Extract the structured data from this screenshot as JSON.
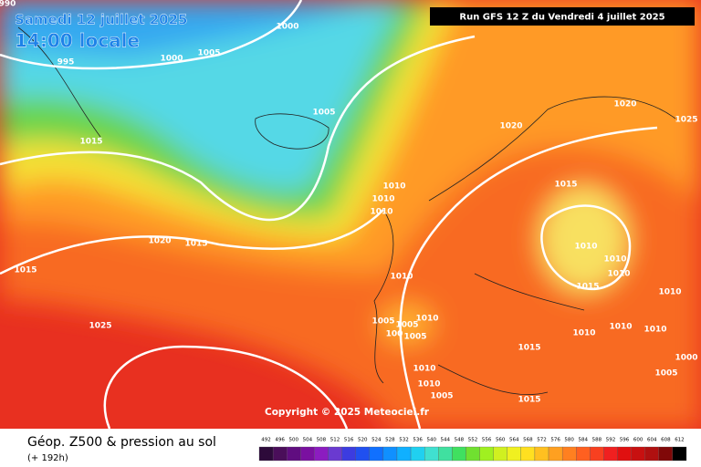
{
  "header": {
    "date": "Samedi 12 juillet 2025",
    "time": "14:00 locale",
    "run": "Run GFS 12 Z du Vendredi 4 juillet 2025"
  },
  "isobar_labels": [
    "990",
    "1000",
    "995",
    "1000",
    "1005",
    "1005",
    "1015",
    "1020",
    "1020",
    "1025",
    "1015",
    "1010",
    "1010",
    "1010",
    "1020",
    "1015",
    "1015",
    "1010",
    "1010",
    "1010",
    "1015",
    "1010",
    "1010",
    "1025",
    "1005",
    "1005",
    "1010",
    "100",
    "1005",
    "1010",
    "1010",
    "1010",
    "1015",
    "1010",
    "1010",
    "1005",
    "1000",
    "1005",
    "1015"
  ],
  "copyright": "Copyright © 2025 Meteociel.fr",
  "footer": {
    "title": "Géop. Z500 & pression au sol",
    "lead": "(+ 192h)"
  },
  "scale": {
    "values": [
      492,
      496,
      500,
      504,
      508,
      512,
      516,
      520,
      524,
      528,
      532,
      536,
      540,
      544,
      548,
      552,
      556,
      560,
      564,
      568,
      572,
      576,
      580,
      584,
      588,
      592,
      596,
      600,
      604,
      608,
      612
    ],
    "colors": [
      "#2d0a3a",
      "#4a0e5a",
      "#600d80",
      "#7a10a0",
      "#8c1cc0",
      "#6a3ad0",
      "#3c3ce0",
      "#2050f0",
      "#1070ff",
      "#1090ff",
      "#10b0ff",
      "#20d0f0",
      "#40e0d0",
      "#40e0a0",
      "#40e060",
      "#70e030",
      "#a0f020",
      "#d0f020",
      "#f0f020",
      "#ffe020",
      "#ffc020",
      "#ffa020",
      "#ff8020",
      "#ff6020",
      "#f84020",
      "#f02020",
      "#e01010",
      "#c81010",
      "#b01010",
      "#800808",
      "#000000"
    ]
  }
}
